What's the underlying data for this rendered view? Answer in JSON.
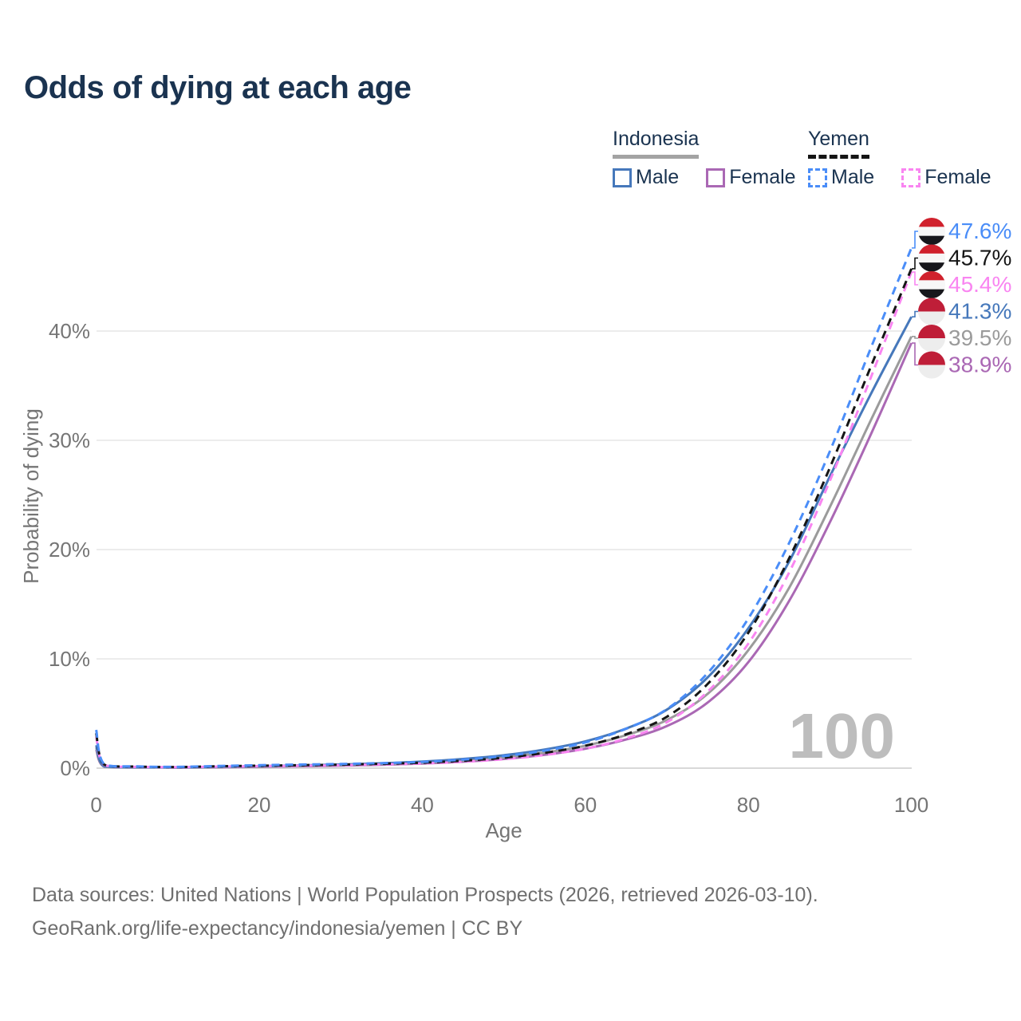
{
  "title": "Odds of dying at each age",
  "legend": {
    "groups": [
      {
        "country": "Indonesia",
        "line_style": "solid",
        "underline_color": "#a3a3a3",
        "items": [
          {
            "label": "Male",
            "series_id": "indonesia_male"
          },
          {
            "label": "Female",
            "series_id": "indonesia_female"
          }
        ]
      },
      {
        "country": "Yemen",
        "line_style": "dashed",
        "underline_color": "#141414",
        "items": [
          {
            "label": "Male",
            "series_id": "yemen_male"
          },
          {
            "label": "Female",
            "series_id": "yemen_female"
          }
        ]
      }
    ]
  },
  "chart_data": {
    "type": "line",
    "title": "Odds of dying at each age",
    "xlabel": "Age",
    "ylabel": "Probability of dying",
    "xlim": [
      0,
      100
    ],
    "ylim_pct": [
      0,
      48
    ],
    "grid": "horizontal",
    "watermark": "100",
    "xticks": [
      0,
      20,
      40,
      60,
      80,
      100
    ],
    "yticks": [
      {
        "value": 0,
        "label": "0%"
      },
      {
        "value": 10,
        "label": "10%"
      },
      {
        "value": 20,
        "label": "20%"
      },
      {
        "value": 30,
        "label": "30%"
      },
      {
        "value": 40,
        "label": "40%"
      }
    ],
    "x": [
      0,
      1,
      5,
      10,
      15,
      20,
      25,
      30,
      35,
      40,
      45,
      50,
      55,
      60,
      65,
      70,
      75,
      80,
      85,
      90,
      95,
      100
    ],
    "series": [
      {
        "id": "indonesia_female",
        "name": "Indonesia Female",
        "country": "Indonesia",
        "color": "#aa68b4",
        "dash": false,
        "flag": "indonesia",
        "end_value": 38.9,
        "end_label": "38.9%",
        "values": [
          1.7,
          0.13,
          0.06,
          0.05,
          0.08,
          0.12,
          0.17,
          0.23,
          0.31,
          0.42,
          0.59,
          0.84,
          1.22,
          1.78,
          2.62,
          3.85,
          6.0,
          9.7,
          15.3,
          22.5,
          30.5,
          38.9
        ]
      },
      {
        "id": "indonesia_total",
        "name": "Indonesia Total",
        "country": "Indonesia",
        "color": "#9b9b9b",
        "dash": false,
        "flag": "indonesia",
        "end_value": 39.5,
        "end_label": "39.5%",
        "values": [
          1.9,
          0.14,
          0.07,
          0.06,
          0.1,
          0.15,
          0.21,
          0.28,
          0.37,
          0.5,
          0.7,
          0.98,
          1.42,
          2.05,
          3.02,
          4.4,
          6.8,
          10.8,
          16.5,
          23.9,
          31.8,
          39.5
        ]
      },
      {
        "id": "indonesia_male",
        "name": "Indonesia Male",
        "country": "Indonesia",
        "color": "#4678bb",
        "dash": false,
        "flag": "indonesia",
        "end_value": 41.3,
        "end_label": "41.3%",
        "values": [
          2.1,
          0.16,
          0.08,
          0.07,
          0.12,
          0.18,
          0.25,
          0.33,
          0.44,
          0.6,
          0.84,
          1.18,
          1.7,
          2.45,
          3.62,
          5.35,
          8.3,
          12.8,
          18.9,
          26.7,
          34.2,
          41.3
        ]
      },
      {
        "id": "yemen_female",
        "name": "Yemen Female",
        "country": "Yemen",
        "color": "#f985f1",
        "dash": true,
        "flag": "yemen",
        "end_value": 45.4,
        "end_label": "45.4%",
        "values": [
          2.9,
          0.28,
          0.12,
          0.09,
          0.14,
          0.18,
          0.22,
          0.27,
          0.34,
          0.43,
          0.58,
          0.82,
          1.2,
          1.78,
          2.72,
          4.2,
          7.0,
          11.4,
          17.9,
          26.3,
          35.7,
          45.4
        ]
      },
      {
        "id": "yemen_total",
        "name": "Yemen Total",
        "country": "Yemen",
        "color": "#161616",
        "dash": true,
        "flag": "yemen",
        "end_value": 45.7,
        "end_label": "45.7%",
        "values": [
          3.2,
          0.31,
          0.14,
          0.1,
          0.17,
          0.22,
          0.27,
          0.32,
          0.4,
          0.5,
          0.68,
          0.95,
          1.4,
          2.05,
          3.1,
          4.7,
          7.7,
          12.4,
          19.2,
          27.5,
          36.7,
          45.7
        ]
      },
      {
        "id": "yemen_male",
        "name": "Yemen Male",
        "country": "Yemen",
        "color": "#4a8df8",
        "dash": true,
        "flag": "yemen",
        "end_value": 47.6,
        "end_label": "47.6%",
        "values": [
          3.5,
          0.35,
          0.16,
          0.12,
          0.2,
          0.27,
          0.33,
          0.38,
          0.46,
          0.57,
          0.78,
          1.1,
          1.6,
          2.35,
          3.6,
          5.4,
          8.7,
          13.7,
          20.6,
          29.0,
          38.4,
          47.6
        ]
      }
    ],
    "flags": {
      "yemen": [
        "#d0212d",
        "#f7f7f7",
        "#17171c"
      ],
      "indonesia": [
        "#bf1e38",
        "#ededed"
      ]
    },
    "colors": {
      "grid": "#ececec",
      "axis": "#d8d8d8",
      "tick_text": "#757575",
      "watermark": "#bdbdbd"
    }
  },
  "footer": {
    "line1": "Data sources: United Nations | World Population Prospects (2026, retrieved 2026-03-10).",
    "line2": "GeoRank.org/life-expectancy/indonesia/yemen | CC BY"
  }
}
